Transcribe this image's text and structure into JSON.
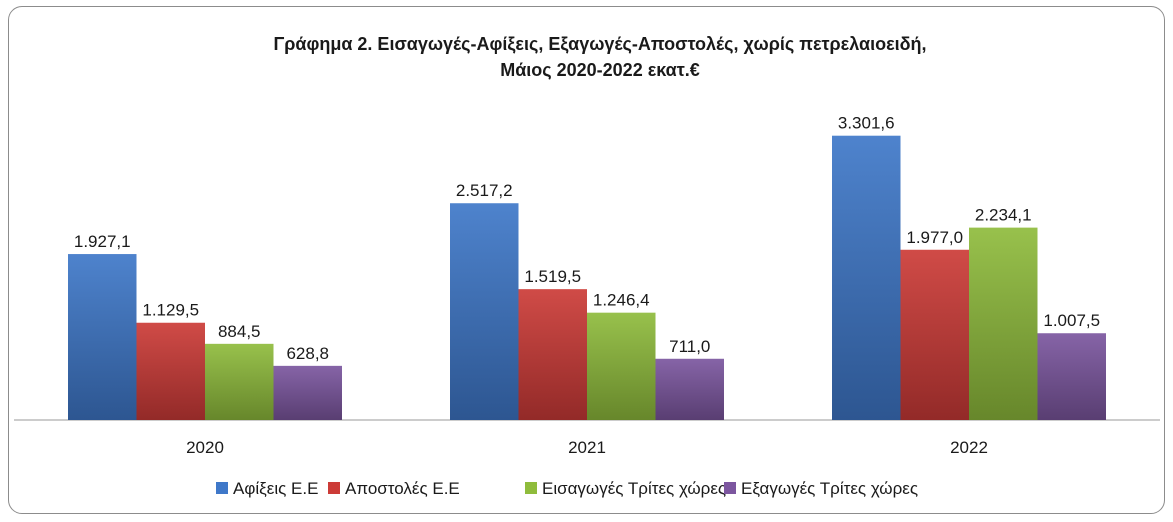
{
  "chart_data": {
    "type": "bar",
    "title": "Γράφημα 2. Εισαγωγές-Αφίξεις, Εξαγωγές-Αποστολές, χωρίς πετρελαιοειδή,",
    "subtitle": "Μάιος 2020-2022 εκατ.€",
    "categories": [
      "2020",
      "2021",
      "2022"
    ],
    "series": [
      {
        "name": "Αφίξεις Ε.Ε",
        "values": [
          1927.1,
          2517.2,
          3301.6
        ],
        "labels": [
          "1.927,1",
          "2.517,2",
          "3.301,6"
        ],
        "color": "#3f78c9"
      },
      {
        "name": "Αποστολές  Ε.Ε",
        "values": [
          1129.5,
          1519.5,
          1977.0
        ],
        "labels": [
          "1.129,5",
          "1.519,5",
          "1.977,0"
        ],
        "color": "#cc3b37"
      },
      {
        "name": "Εισαγωγές Τρίτες χώρες",
        "values": [
          884.5,
          1246.4,
          2234.1
        ],
        "labels": [
          "884,5",
          "1.246,4",
          "2.234,1"
        ],
        "color": "#8fbc3c"
      },
      {
        "name": "Εξαγωγές Τρίτες χώρες",
        "values": [
          628.8,
          711.0,
          1007.5
        ],
        "labels": [
          "628,8",
          "711,0",
          "1.007,5"
        ],
        "color": "#7c569f"
      }
    ],
    "ylim": [
      0,
      3600
    ],
    "legend_position": "bottom",
    "grid": false
  }
}
